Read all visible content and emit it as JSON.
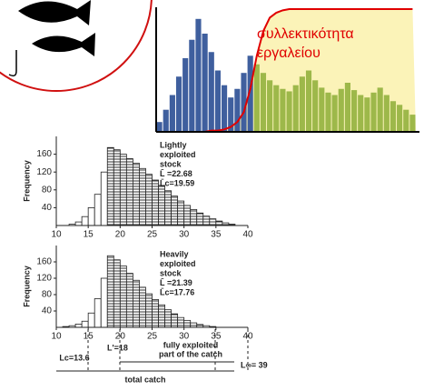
{
  "chart_data": [
    {
      "type": "bar",
      "annotation": [
        "συλλεκτικότητα",
        "εργαλείου"
      ],
      "annotation_color": "#e00000",
      "values": [
        8,
        18,
        30,
        45,
        60,
        75,
        92,
        80,
        65,
        50,
        38,
        28,
        35,
        48,
        62,
        55,
        48,
        42,
        38,
        35,
        33,
        38,
        45,
        50,
        42,
        36,
        32,
        30,
        35,
        40,
        34,
        30,
        28,
        32,
        36,
        30,
        25,
        22,
        18,
        14
      ],
      "colors": [
        "#3f5f9e",
        "#3f5f9e",
        "#3f5f9e",
        "#3f5f9e",
        "#3f5f9e",
        "#3f5f9e",
        "#3f5f9e",
        "#3f5f9e",
        "#3f5f9e",
        "#3f5f9e",
        "#3f5f9e",
        "#3f5f9e",
        "#3f5f9e",
        "#3f5f9e",
        "#3f5f9e",
        "#9db84a",
        "#9db84a",
        "#9db84a",
        "#9db84a",
        "#9db84a",
        "#9db84a",
        "#9db84a",
        "#9db84a",
        "#9db84a",
        "#9db84a",
        "#9db84a",
        "#9db84a",
        "#9db84a",
        "#9db84a",
        "#9db84a",
        "#9db84a",
        "#9db84a",
        "#9db84a",
        "#9db84a",
        "#9db84a",
        "#9db84a",
        "#9db84a",
        "#9db84a",
        "#9db84a",
        "#9db84a"
      ],
      "curve": [
        0,
        0,
        0,
        0,
        0,
        0,
        0,
        0,
        1,
        1,
        2,
        4,
        8,
        16,
        35,
        62,
        82,
        93,
        97,
        99,
        100,
        100,
        100,
        100,
        100,
        100,
        100,
        100,
        100,
        100,
        100,
        100,
        100,
        100,
        100,
        100,
        100,
        100,
        100,
        100
      ],
      "curve_color": "#e00000",
      "ylim": [
        0,
        100
      ]
    },
    {
      "type": "histogram",
      "ylabel": "Frequency",
      "annotation": [
        "Lightly",
        "exploited",
        "stock",
        "L̄ =22.68",
        "L̄c=19.59"
      ],
      "bins": [
        12,
        13,
        14,
        15,
        16,
        17,
        18,
        19,
        20,
        21,
        22,
        23,
        24,
        25,
        26,
        27,
        28,
        29,
        30,
        31,
        32,
        33,
        34,
        35,
        36,
        37,
        38
      ],
      "counts": [
        3,
        8,
        20,
        40,
        70,
        120,
        175,
        170,
        160,
        150,
        140,
        128,
        115,
        102,
        90,
        78,
        66,
        55,
        45,
        36,
        28,
        21,
        15,
        10,
        6,
        3
      ],
      "hatched_from_index": 6,
      "xlim": [
        10,
        40
      ],
      "xticks": [
        10,
        15,
        20,
        25,
        30,
        35,
        40
      ],
      "ylim": [
        0,
        200
      ],
      "yticks": [
        40,
        80,
        120,
        160
      ]
    },
    {
      "type": "histogram",
      "ylabel": "Frequency",
      "annotation": [
        "Heavily",
        "exploited",
        "stock",
        "L̄ =21.39",
        "L̄c=17.76"
      ],
      "bins": [
        11,
        12,
        13,
        14,
        15,
        16,
        17,
        18,
        19,
        20,
        21,
        22,
        23,
        24,
        25,
        26,
        27,
        28,
        29,
        30,
        31,
        32,
        33,
        34,
        35
      ],
      "counts": [
        2,
        4,
        8,
        15,
        35,
        70,
        120,
        175,
        165,
        150,
        132,
        115,
        98,
        82,
        68,
        55,
        43,
        33,
        24,
        17,
        11,
        7,
        4,
        2
      ],
      "hatched_from_index": 7,
      "xlim": [
        10,
        40
      ],
      "xticks": [
        10,
        15,
        20,
        25,
        30,
        35,
        40
      ],
      "ylim": [
        0,
        200
      ],
      "yticks": [
        40,
        80,
        120,
        160
      ],
      "notes": [
        "L'=18",
        "fully exploited",
        "part of the catch",
        "Lc=13.6",
        "total catch",
        "L∞= 39"
      ]
    }
  ]
}
